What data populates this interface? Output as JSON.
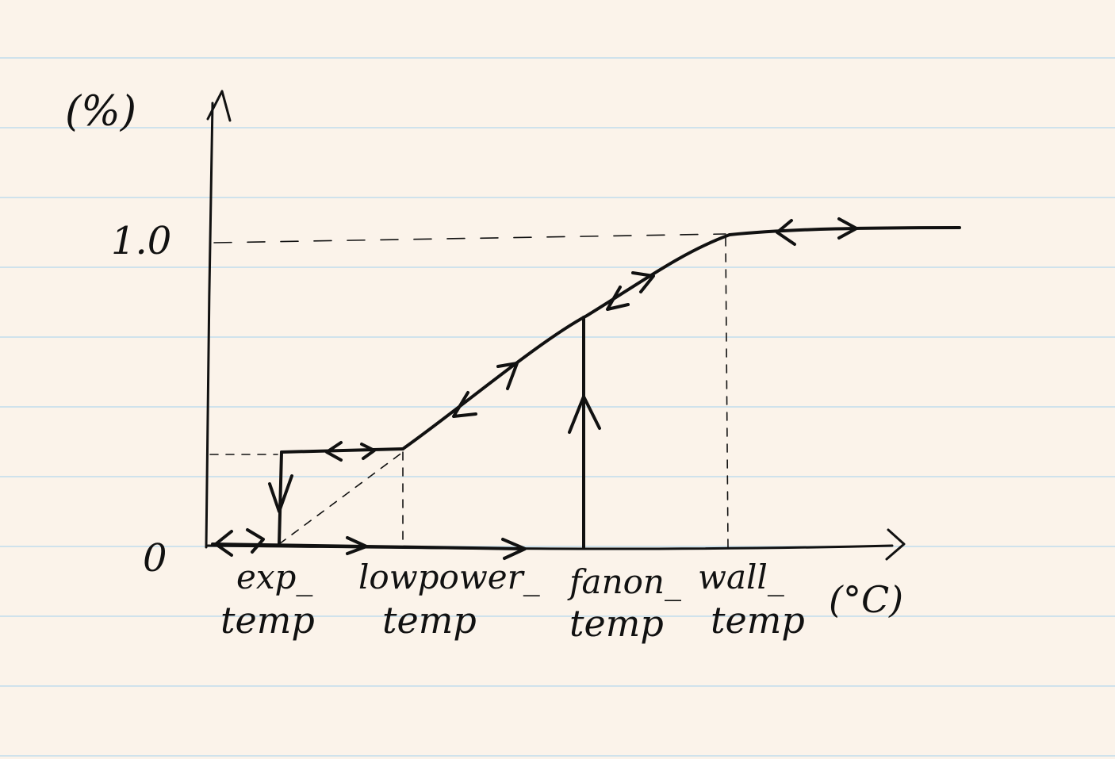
{
  "axes": {
    "y_unit": "(%)",
    "x_unit": "(°C)",
    "y_origin": "0",
    "y_max": "1.0"
  },
  "x_labels": [
    {
      "line1": "exp_",
      "line2": "temp"
    },
    {
      "line1": "lowpower_",
      "line2": "temp"
    },
    {
      "line1": "fanon_",
      "line2": "temp"
    },
    {
      "line1": "wall_",
      "line2": "temp"
    }
  ]
}
